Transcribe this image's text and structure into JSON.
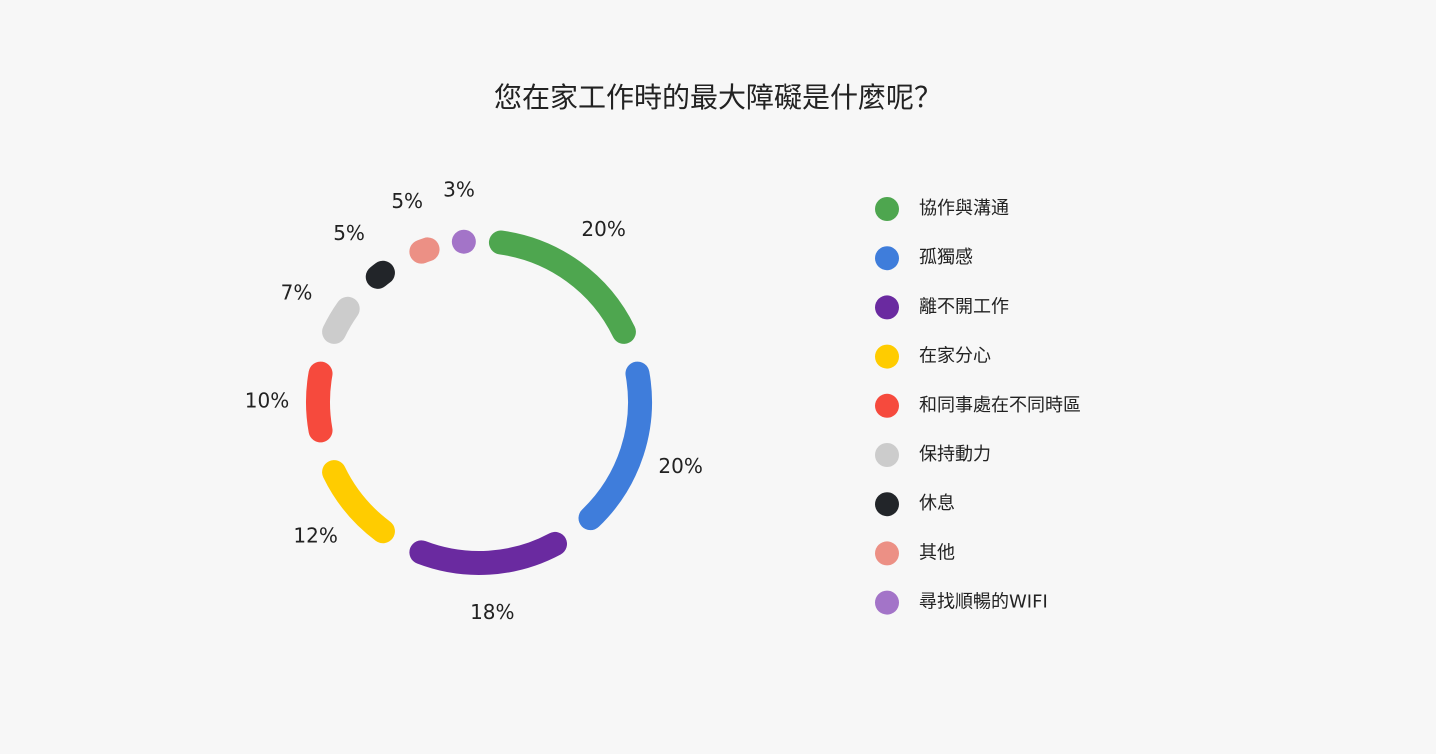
{
  "chart_data": {
    "type": "donut",
    "title": "您在家工作時的最大障礙是什麼呢？",
    "categories": [
      "協作與溝通",
      "孤獨感",
      "離不開工作",
      "在家分心",
      "和同事處在不同時區",
      "保持動力",
      "休息",
      "其他",
      "尋找順暢的WIFI"
    ],
    "values": [
      20,
      20,
      18,
      12,
      10,
      7,
      5,
      5,
      3
    ],
    "value_labels": [
      "20%",
      "20%",
      "18%",
      "12%",
      "10%",
      "7%",
      "5%",
      "5%",
      "3%"
    ],
    "colors": [
      "#4ea64f",
      "#3f7ddb",
      "#6a2aa0",
      "#ffcc00",
      "#f64a3d",
      "#cccccc",
      "#222529",
      "#ec9085",
      "#a374c8"
    ],
    "legend": "right"
  }
}
